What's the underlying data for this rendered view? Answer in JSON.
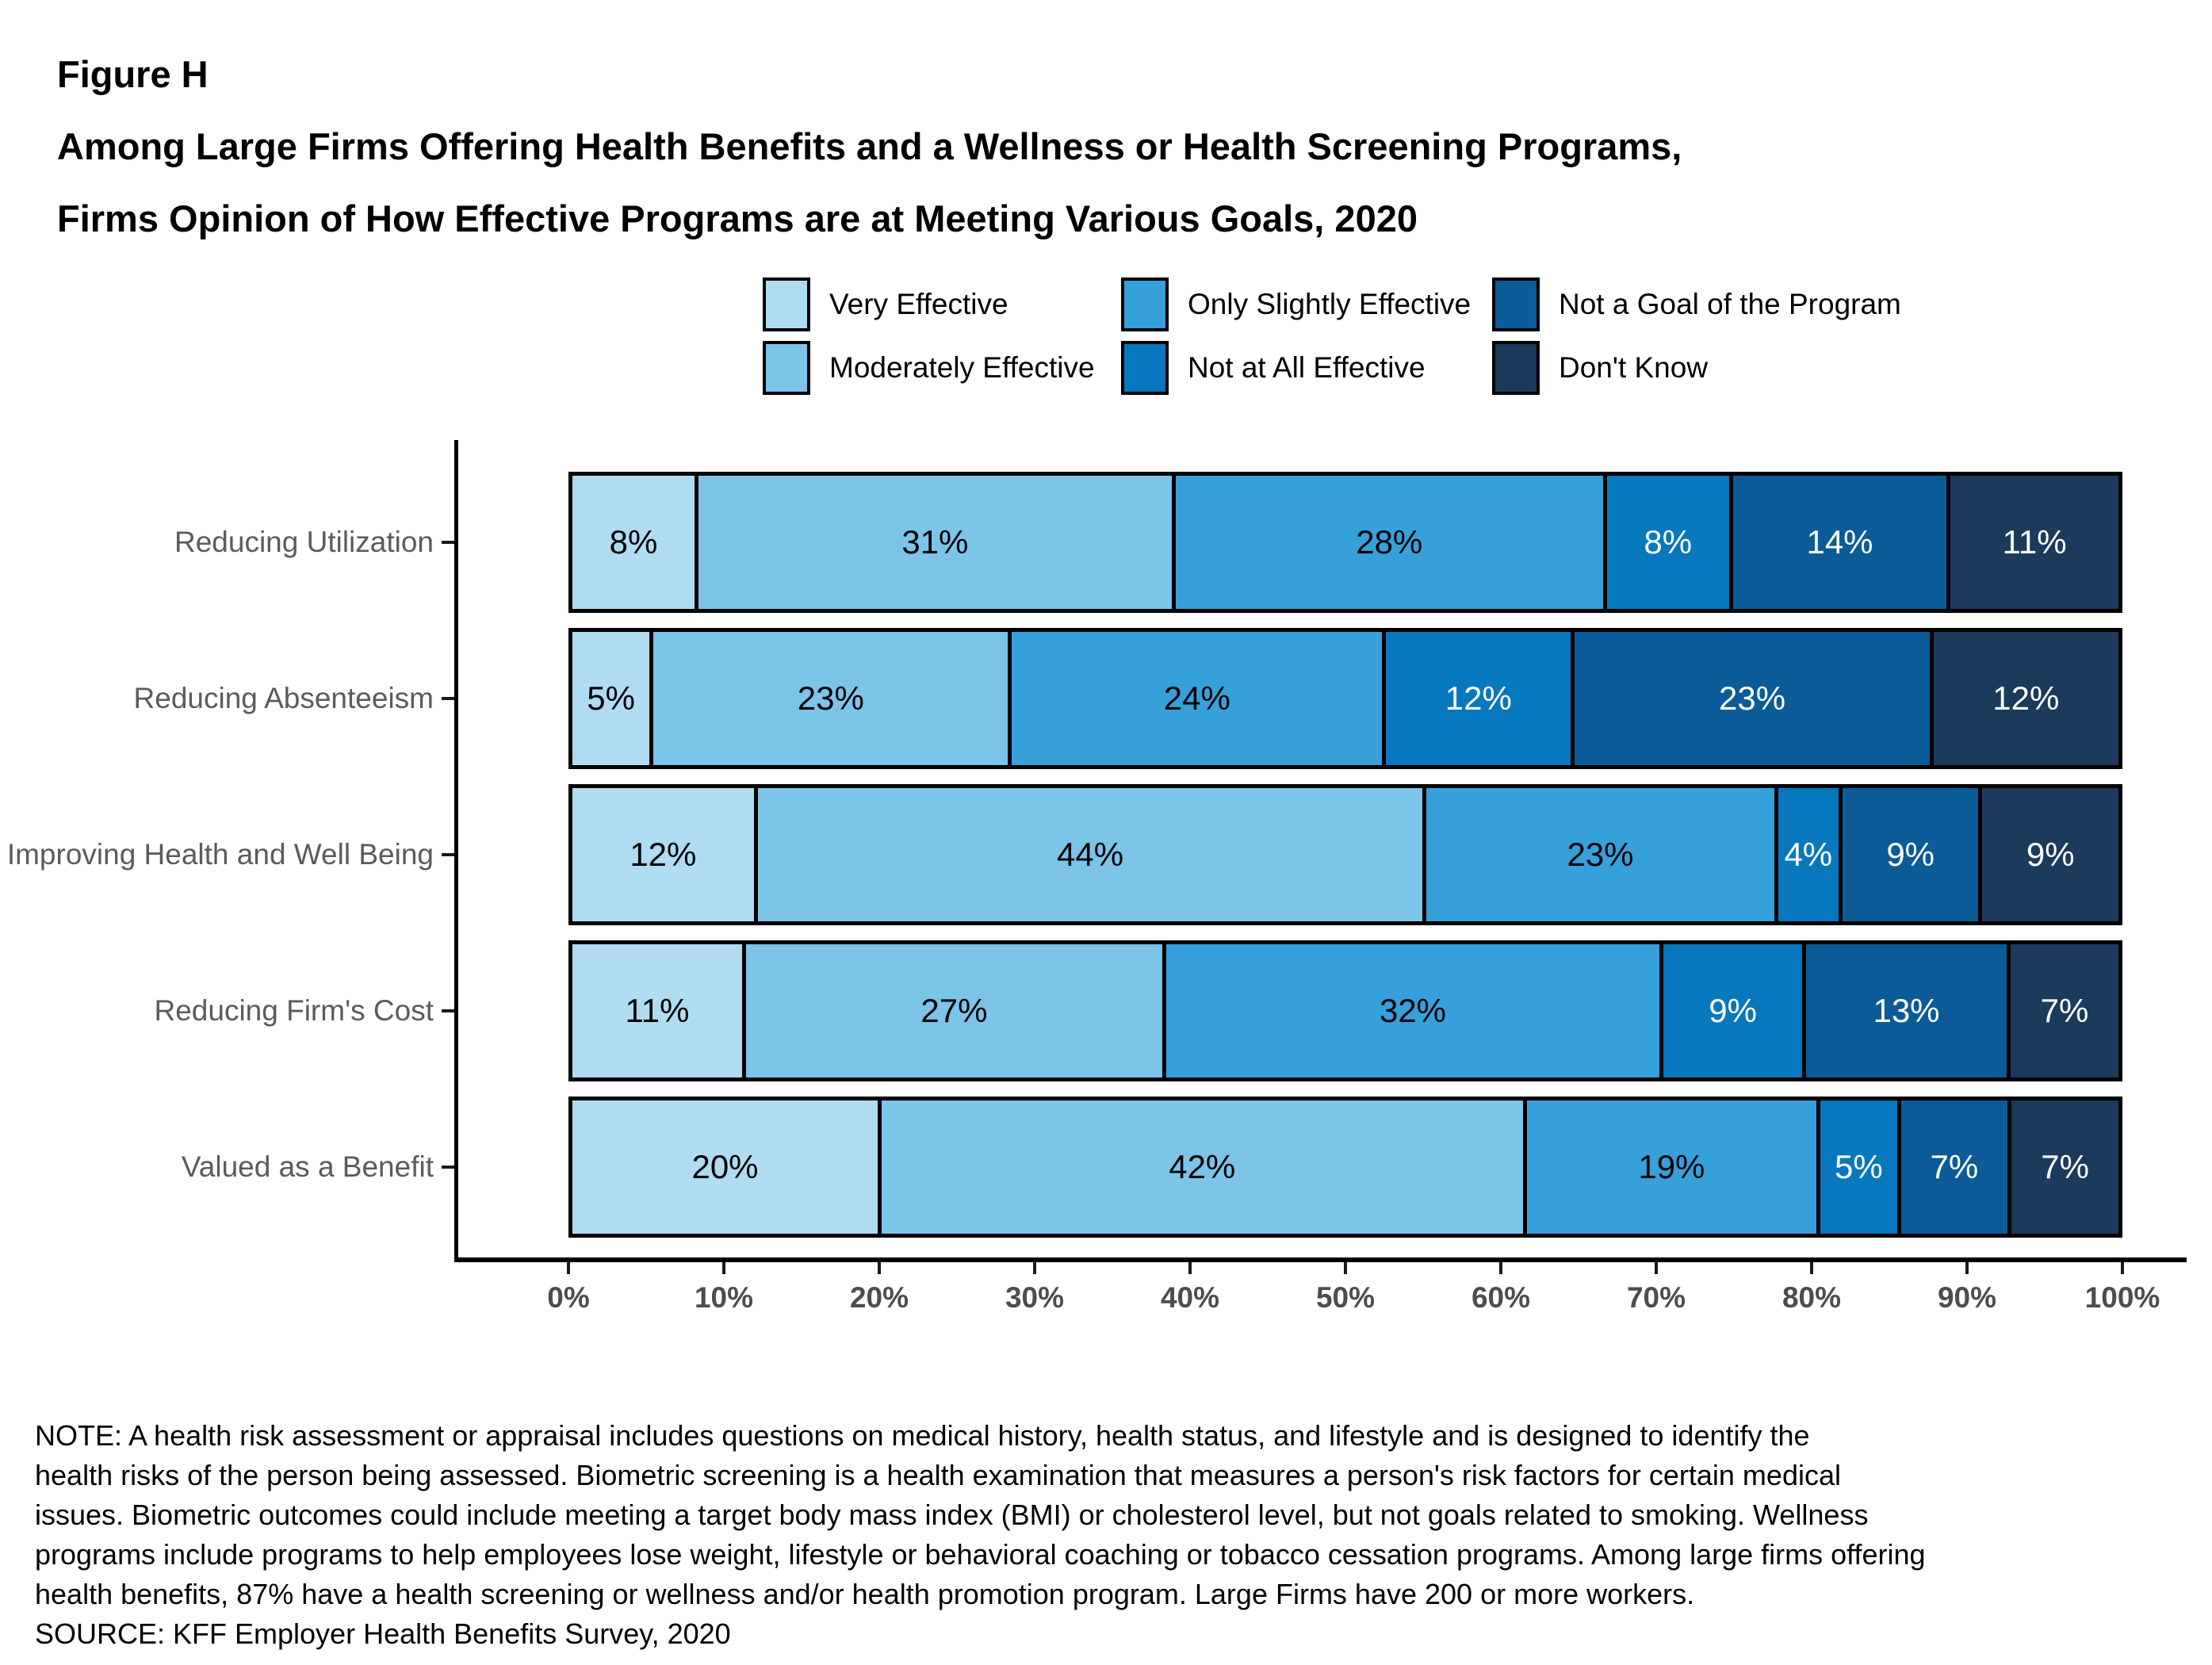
{
  "figure": {
    "label": "Figure H",
    "title_line1": "Among Large Firms Offering Health Benefits and a Wellness or Health Screening Programs,",
    "title_line2": "Firms Opinion of How Effective Programs are at Meeting Various Goals, 2020"
  },
  "chart_data": {
    "type": "bar",
    "orientation": "horizontal-stacked",
    "unit": "percent",
    "title": "Among Large Firms Offering Health Benefits and a Wellness or Health Screening Programs, Firms Opinion of How Effective Programs are at Meeting Various Goals, 2020",
    "categories": [
      "Reducing Utilization",
      "Reducing Absenteeism",
      "Improving Health and Well Being",
      "Reducing Firm's Cost",
      "Valued as a Benefit"
    ],
    "series": [
      {
        "name": "Very Effective",
        "color": "#B0DCF1",
        "text_color": "#000000",
        "values": [
          8,
          5,
          12,
          11,
          20
        ]
      },
      {
        "name": "Moderately Effective",
        "color": "#7CC4E8",
        "text_color": "#000000",
        "values": [
          31,
          23,
          44,
          27,
          42
        ]
      },
      {
        "name": "Only Slightly Effective",
        "color": "#36A0DB",
        "text_color": "#000000",
        "values": [
          28,
          24,
          23,
          32,
          19
        ]
      },
      {
        "name": "Not at All Effective",
        "color": "#0777BE",
        "text_color": "#ffffff",
        "values": [
          8,
          12,
          4,
          9,
          5
        ]
      },
      {
        "name": "Not a Goal of the Program",
        "color": "#0A5B97",
        "text_color": "#ffffff",
        "values": [
          14,
          23,
          9,
          13,
          7
        ]
      },
      {
        "name": "Don't Know",
        "color": "#1B3A5C",
        "text_color": "#ffffff",
        "values": [
          11,
          12,
          9,
          7,
          7
        ]
      }
    ],
    "legend_order_row_major": [
      0,
      2,
      4,
      1,
      3,
      5
    ],
    "x_axis": {
      "min": 0,
      "max": 100,
      "ticks": [
        "0%",
        "10%",
        "20%",
        "30%",
        "40%",
        "50%",
        "60%",
        "70%",
        "80%",
        "90%",
        "100%"
      ]
    },
    "grid": false,
    "legend_position": "top"
  },
  "note_lines": [
    "NOTE: A health risk assessment or appraisal includes questions on medical history, health status, and lifestyle and is designed to identify the",
    "health risks of the person being assessed. Biometric screening is a health examination that measures a person's risk factors for certain medical",
    "issues. Biometric outcomes could include meeting a target body mass index (BMI) or cholesterol level, but not goals related to smoking. Wellness",
    "programs include programs to help employees lose weight, lifestyle or behavioral coaching or tobacco cessation programs. Among large firms offering",
    "health benefits, 87% have a health screening or wellness and/or health promotion program. Large Firms have 200 or more workers."
  ],
  "source": "SOURCE: KFF Employer Health Benefits Survey, 2020"
}
